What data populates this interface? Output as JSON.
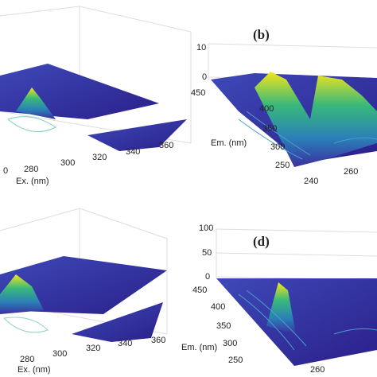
{
  "panels": [
    {
      "ex_ticks": [
        "0",
        "280",
        "300",
        "320",
        "340",
        "360"
      ],
      "ex_label": "Ex. (nm)"
    },
    {
      "label": "(b)",
      "z_ticks": [
        "10",
        "0"
      ],
      "em_ticks": [
        "450",
        "400",
        "350",
        "300",
        "250"
      ],
      "em_label": "Em. (nm)",
      "ex_ticks": [
        "240",
        "260"
      ]
    },
    {
      "ex_ticks": [
        "280",
        "300",
        "320",
        "340",
        "360"
      ],
      "ex_label": "Ex. (nm)"
    },
    {
      "label": "(d)",
      "z_ticks": [
        "100",
        "50",
        "0"
      ],
      "em_ticks": [
        "450",
        "400",
        "350",
        "300",
        "250"
      ],
      "em_label": "Em. (nm)",
      "ex_ticks": [
        "260"
      ]
    }
  ]
}
